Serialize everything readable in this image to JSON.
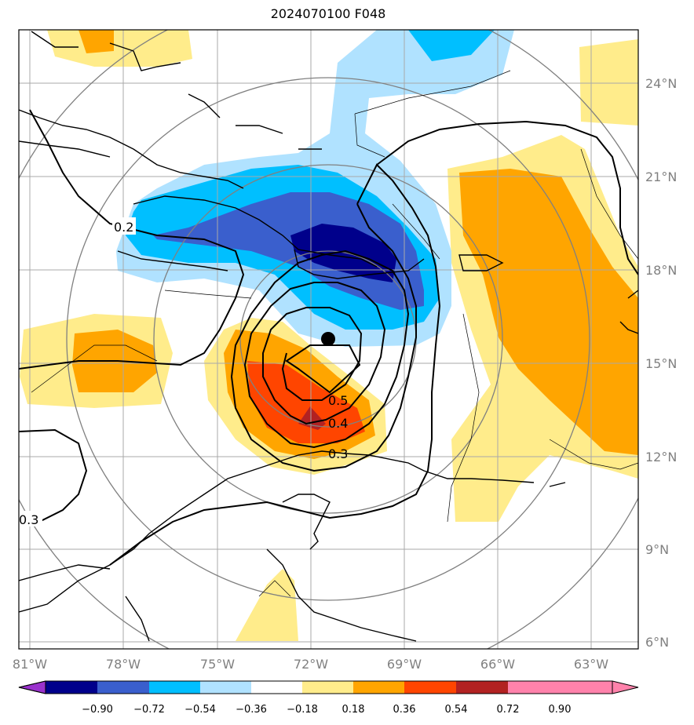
{
  "title": "2024070100 F048",
  "map": {
    "lon_labels": [
      "81°W",
      "78°W",
      "75°W",
      "72°W",
      "69°W",
      "66°W",
      "63°W"
    ],
    "lat_labels": [
      "24°N",
      "21°N",
      "18°N",
      "15°N",
      "12°N",
      "9°N",
      "6°N"
    ],
    "contour_labels": [
      "0.2",
      "0.5",
      "0.4",
      "0.3",
      "0.3"
    ],
    "center_marker": {
      "lon": -71.5,
      "lat": 15.7
    }
  },
  "colorbar": {
    "ticks": [
      "−0.90",
      "−0.72",
      "−0.54",
      "−0.36",
      "−0.18",
      "0.18",
      "0.36",
      "0.54",
      "0.72",
      "0.90"
    ],
    "colors": [
      "#9a32cd",
      "#00008b",
      "#3a5fcd",
      "#00bfff",
      "#b0e2ff",
      "#ffffff",
      "#ffec8b",
      "#ffa500",
      "#ff4500",
      "#b22222",
      "#ff82ab"
    ]
  }
}
